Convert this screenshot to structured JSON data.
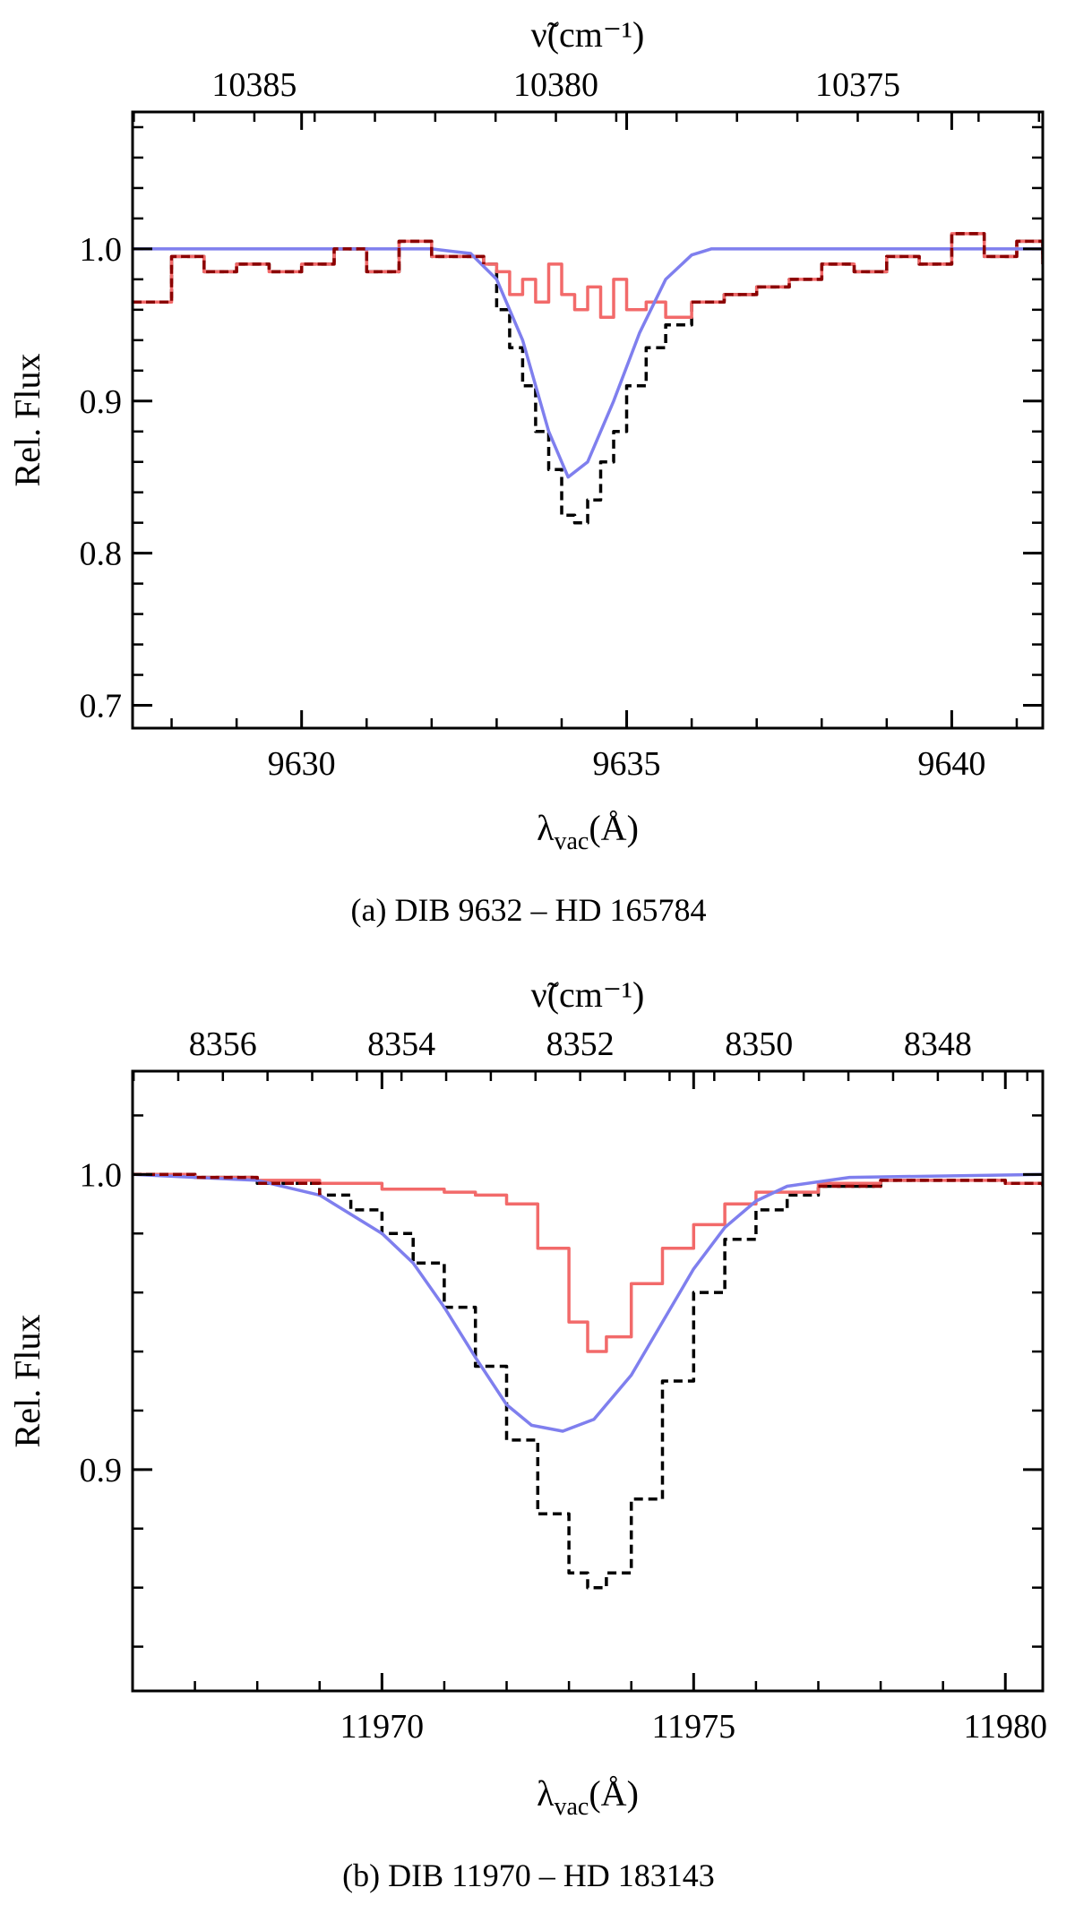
{
  "figure": {
    "panels": [
      {
        "caption": "(a) DIB 9632 – HD 165784",
        "ylabel": "Rel. Flux",
        "xlabel": "λ",
        "xlabel_sub": "vac",
        "xlabel_unit": "(Å)",
        "top_label": "ν̃",
        "top_label_unit": "(cm⁻¹)"
      },
      {
        "caption": "(b) DIB 11970 – HD 183143",
        "ylabel": "Rel. Flux",
        "xlabel": "λ",
        "xlabel_sub": "vac",
        "xlabel_unit": "(Å)",
        "top_label": "ν̃",
        "top_label_unit": "(cm⁻¹)"
      }
    ]
  },
  "chart_data": [
    {
      "type": "line",
      "xlim": [
        9627.4,
        9641.4
      ],
      "ylim": [
        0.685,
        1.09
      ],
      "x_ticks": [
        "9630",
        "9635",
        "9640"
      ],
      "y_ticks": [
        "0.7",
        "0.8",
        "0.9",
        "1.0"
      ],
      "top_axis_ticks": [
        "10385",
        "10380",
        "10375"
      ],
      "grid": false,
      "legend": "none",
      "series": [
        {
          "style": "black-dashed-steps",
          "color": "#000000",
          "x": [
            9627.4,
            9628.0,
            9628.5,
            9629.0,
            9629.5,
            9630.0,
            9630.5,
            9631.0,
            9631.5,
            9632.0,
            9632.5,
            9632.8,
            9633.0,
            9633.2,
            9633.4,
            9633.6,
            9633.8,
            9634.0,
            9634.2,
            9634.4,
            9634.6,
            9634.8,
            9635.0,
            9635.3,
            9635.6,
            9636.0,
            9636.5,
            9637.0,
            9637.5,
            9638.0,
            9638.5,
            9639.0,
            9639.5,
            9640.0,
            9640.5,
            9641.0,
            9641.4
          ],
          "y": [
            0.965,
            0.995,
            0.985,
            0.99,
            0.985,
            0.99,
            1.0,
            0.985,
            1.005,
            0.995,
            0.995,
            0.99,
            0.96,
            0.935,
            0.91,
            0.88,
            0.855,
            0.825,
            0.82,
            0.835,
            0.86,
            0.88,
            0.91,
            0.935,
            0.95,
            0.965,
            0.97,
            0.975,
            0.98,
            0.99,
            0.985,
            0.995,
            0.99,
            1.01,
            0.995,
            1.005,
            0.99
          ]
        },
        {
          "style": "red-steps",
          "color": "#f26a6a",
          "x": [
            9627.4,
            9628.0,
            9628.5,
            9629.0,
            9629.5,
            9630.0,
            9630.5,
            9631.0,
            9631.5,
            9632.0,
            9632.5,
            9632.8,
            9633.0,
            9633.2,
            9633.4,
            9633.6,
            9633.8,
            9634.0,
            9634.2,
            9634.4,
            9634.6,
            9634.8,
            9635.0,
            9635.3,
            9635.6,
            9636.0,
            9636.5,
            9637.0,
            9637.5,
            9638.0,
            9638.5,
            9639.0,
            9639.5,
            9640.0,
            9640.5,
            9641.0,
            9641.4
          ],
          "y": [
            0.965,
            0.995,
            0.985,
            0.99,
            0.985,
            0.99,
            1.0,
            0.985,
            1.005,
            0.995,
            0.995,
            0.99,
            0.985,
            0.97,
            0.98,
            0.965,
            0.99,
            0.97,
            0.96,
            0.975,
            0.955,
            0.98,
            0.96,
            0.965,
            0.955,
            0.965,
            0.97,
            0.975,
            0.98,
            0.99,
            0.985,
            0.995,
            0.99,
            1.01,
            0.995,
            1.005,
            0.99
          ]
        },
        {
          "style": "blue-model",
          "color": "#7f7fee",
          "x": [
            9627.4,
            9632.0,
            9632.6,
            9633.0,
            9633.4,
            9633.8,
            9634.1,
            9634.4,
            9634.8,
            9635.2,
            9635.6,
            9636.0,
            9636.3,
            9641.4
          ],
          "y": [
            1.0,
            1.0,
            0.997,
            0.98,
            0.94,
            0.88,
            0.85,
            0.86,
            0.9,
            0.945,
            0.98,
            0.996,
            1.0,
            1.0
          ]
        },
        {
          "style": "dark-red-overlap",
          "color": "#8b0000",
          "x": [
            9627.4,
            9628.0,
            9628.5,
            9629.0,
            9629.5,
            9630.0,
            9630.5,
            9631.0,
            9631.5,
            9632.0,
            9632.5,
            9632.8
          ],
          "y": [
            0.965,
            0.995,
            0.985,
            0.99,
            0.985,
            0.99,
            1.0,
            0.985,
            1.005,
            0.995,
            0.995,
            0.99
          ]
        },
        {
          "style": "dark-red-overlap",
          "color": "#8b0000",
          "x": [
            9636.0,
            9636.5,
            9637.0,
            9637.5,
            9638.0,
            9638.5,
            9639.0,
            9639.5,
            9640.0,
            9640.5,
            9641.0,
            9641.4
          ],
          "y": [
            0.965,
            0.97,
            0.975,
            0.98,
            0.99,
            0.985,
            0.995,
            0.99,
            1.01,
            0.995,
            1.005,
            0.99
          ]
        }
      ]
    },
    {
      "type": "line",
      "xlim": [
        11966.0,
        11980.6
      ],
      "ylim": [
        0.825,
        1.035
      ],
      "x_ticks": [
        "11970",
        "11975",
        "11980"
      ],
      "y_ticks": [
        "0.9",
        "1.0"
      ],
      "top_axis_ticks": [
        "8356",
        "8354",
        "8352",
        "8350",
        "8348"
      ],
      "grid": false,
      "legend": "none",
      "series": [
        {
          "style": "black-dashed-steps",
          "color": "#000000",
          "x": [
            11966.0,
            11967.0,
            11968.0,
            11969.0,
            11969.5,
            11970.0,
            11970.5,
            11971.0,
            11971.5,
            11972.0,
            11972.5,
            11973.0,
            11973.3,
            11973.6,
            11974.0,
            11974.5,
            11975.0,
            11975.5,
            11976.0,
            11976.5,
            11977.0,
            11978.0,
            11979.0,
            11980.0,
            11980.6
          ],
          "y": [
            1.0,
            0.999,
            0.997,
            0.993,
            0.988,
            0.98,
            0.97,
            0.955,
            0.935,
            0.91,
            0.885,
            0.865,
            0.86,
            0.865,
            0.89,
            0.93,
            0.96,
            0.978,
            0.988,
            0.993,
            0.996,
            0.998,
            0.998,
            0.997,
            0.996
          ]
        },
        {
          "style": "red-steps",
          "color": "#f26a6a",
          "x": [
            11966.0,
            11967.0,
            11968.0,
            11969.0,
            11970.0,
            11971.0,
            11971.5,
            11972.0,
            11972.5,
            11973.0,
            11973.3,
            11973.6,
            11974.0,
            11974.5,
            11975.0,
            11975.5,
            11976.0,
            11977.0,
            11978.0,
            11979.0,
            11980.0,
            11980.6
          ],
          "y": [
            1.0,
            0.999,
            0.998,
            0.997,
            0.995,
            0.994,
            0.993,
            0.99,
            0.975,
            0.95,
            0.94,
            0.945,
            0.963,
            0.975,
            0.983,
            0.99,
            0.994,
            0.997,
            0.998,
            0.998,
            0.997,
            0.996
          ]
        },
        {
          "style": "blue-model",
          "color": "#7f7fee",
          "x": [
            11966.0,
            11968.0,
            11969.0,
            11970.0,
            11970.5,
            11971.0,
            11971.5,
            11972.0,
            11972.4,
            11972.9,
            11973.4,
            11974.0,
            11974.5,
            11975.0,
            11975.5,
            11976.0,
            11976.5,
            11977.5,
            11980.6
          ],
          "y": [
            1.0,
            0.998,
            0.993,
            0.98,
            0.97,
            0.955,
            0.938,
            0.922,
            0.915,
            0.913,
            0.917,
            0.932,
            0.95,
            0.968,
            0.982,
            0.991,
            0.996,
            0.999,
            1.0
          ]
        },
        {
          "style": "dark-red-overlap",
          "color": "#8b0000",
          "x": [
            11966.0,
            11967.0,
            11968.0,
            11969.0
          ],
          "y": [
            1.0,
            0.999,
            0.997,
            0.993
          ]
        },
        {
          "style": "dark-red-overlap",
          "color": "#8b0000",
          "x": [
            11977.0,
            11978.0,
            11979.0,
            11980.0,
            11980.6
          ],
          "y": [
            0.996,
            0.998,
            0.998,
            0.997,
            0.996
          ]
        }
      ]
    }
  ]
}
